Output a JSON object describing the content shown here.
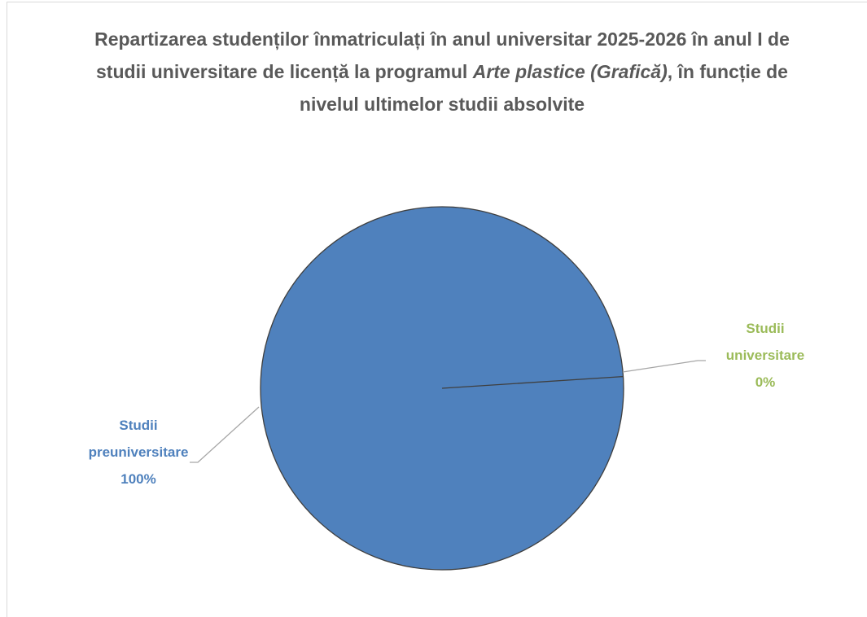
{
  "chart_data": {
    "type": "pie",
    "title": [
      {
        "text": "Repartizarea studenților înmatriculați în anul universitar 2025-2026 în anul I de studii universitare de licență la programul ",
        "italic": false
      },
      {
        "text": "Arte plastice (Grafică)",
        "italic": true
      },
      {
        "text": ", în funcție de nivelul ultimelor studii absolvite",
        "italic": false
      }
    ],
    "categories": [
      "Studii preuniversitare",
      "Studii universitare"
    ],
    "values": [
      100,
      0
    ],
    "value_labels": [
      "100%",
      "0%"
    ],
    "colors": [
      "#4f81bd",
      "#9bbb59"
    ]
  }
}
